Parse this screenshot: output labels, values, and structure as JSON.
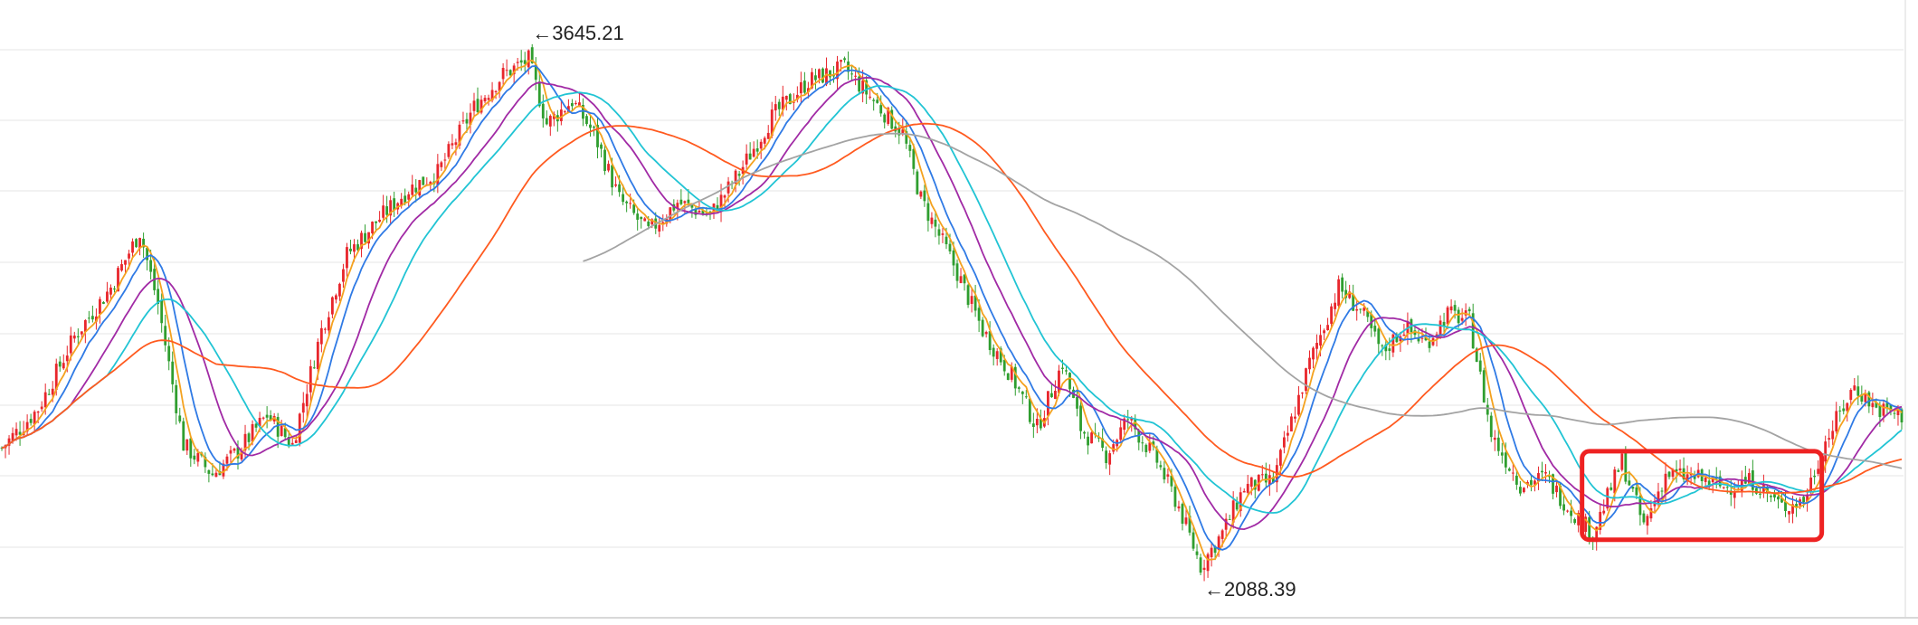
{
  "chart_data": {
    "type": "candlestick",
    "title": "",
    "xlabel": "",
    "ylabel": "",
    "ylim": [
      1950,
      3800
    ],
    "grid": true,
    "legend": "none",
    "colors": {
      "up": "#e8262c",
      "down": "#2f9e2f",
      "grid": "#e6e6e6",
      "ma_fast": "#f4a21f",
      "ma_mid": "#2f7ae5",
      "ma_slow": "#a12aa5",
      "ma_long": "#21c4d4",
      "ma_year": "#ff5a1f",
      "ma_multi": "#a3a3a3",
      "highlight": "#ee2222"
    },
    "annotations": [
      {
        "text": "←3645.21",
        "value": 3645.21,
        "bar": 145,
        "kind": "high"
      },
      {
        "text": "←2088.39",
        "value": 2088.39,
        "bar": 330,
        "kind": "low"
      }
    ],
    "highlight_range": {
      "from_bar": 436,
      "to_bar": 500,
      "low": 2180,
      "high": 2450
    },
    "path_anchors": [
      [
        0,
        2460
      ],
      [
        10,
        2580
      ],
      [
        20,
        2800
      ],
      [
        30,
        2950
      ],
      [
        38,
        3120
      ],
      [
        43,
        2900
      ],
      [
        50,
        2470
      ],
      [
        58,
        2380
      ],
      [
        65,
        2450
      ],
      [
        73,
        2560
      ],
      [
        80,
        2470
      ],
      [
        88,
        2820
      ],
      [
        95,
        3050
      ],
      [
        103,
        3150
      ],
      [
        112,
        3250
      ],
      [
        120,
        3300
      ],
      [
        130,
        3500
      ],
      [
        138,
        3600
      ],
      [
        145,
        3645
      ],
      [
        150,
        3450
      ],
      [
        157,
        3520
      ],
      [
        163,
        3420
      ],
      [
        170,
        3220
      ],
      [
        178,
        3120
      ],
      [
        186,
        3210
      ],
      [
        195,
        3170
      ],
      [
        203,
        3300
      ],
      [
        212,
        3470
      ],
      [
        222,
        3580
      ],
      [
        232,
        3620
      ],
      [
        240,
        3520
      ],
      [
        248,
        3420
      ],
      [
        253,
        3220
      ],
      [
        262,
        3020
      ],
      [
        270,
        2820
      ],
      [
        278,
        2680
      ],
      [
        285,
        2520
      ],
      [
        292,
        2720
      ],
      [
        297,
        2520
      ],
      [
        304,
        2440
      ],
      [
        310,
        2550
      ],
      [
        318,
        2420
      ],
      [
        324,
        2280
      ],
      [
        330,
        2100
      ],
      [
        336,
        2200
      ],
      [
        342,
        2340
      ],
      [
        350,
        2360
      ],
      [
        360,
        2720
      ],
      [
        368,
        2950
      ],
      [
        374,
        2880
      ],
      [
        380,
        2750
      ],
      [
        386,
        2830
      ],
      [
        392,
        2780
      ],
      [
        398,
        2870
      ],
      [
        404,
        2850
      ],
      [
        410,
        2500
      ],
      [
        418,
        2350
      ],
      [
        425,
        2370
      ],
      [
        432,
        2270
      ],
      [
        438,
        2200
      ],
      [
        446,
        2420
      ],
      [
        452,
        2220
      ],
      [
        458,
        2380
      ],
      [
        466,
        2370
      ],
      [
        474,
        2340
      ],
      [
        482,
        2360
      ],
      [
        490,
        2280
      ],
      [
        496,
        2300
      ],
      [
        502,
        2480
      ],
      [
        510,
        2650
      ],
      [
        516,
        2580
      ],
      [
        523,
        2560
      ]
    ],
    "moving_averages": [
      {
        "period": 5,
        "color_key": "ma_fast"
      },
      {
        "period": 10,
        "color_key": "ma_mid"
      },
      {
        "period": 20,
        "color_key": "ma_slow"
      },
      {
        "period": 30,
        "color_key": "ma_long"
      },
      {
        "period": 60,
        "color_key": "ma_year"
      },
      {
        "period": 120,
        "color_key": "ma_multi"
      }
    ],
    "bar_count": 524,
    "seed": 7
  }
}
